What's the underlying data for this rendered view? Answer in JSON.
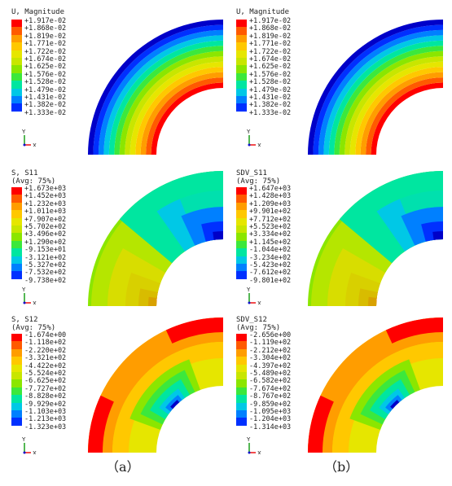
{
  "panels": [
    {
      "id": "u_a",
      "title": [
        "U, Magnitude"
      ],
      "values": [
        "+1.917e-02",
        "+1.868e-02",
        "+1.819e-02",
        "+1.771e-02",
        "+1.722e-02",
        "+1.674e-02",
        "+1.625e-02",
        "+1.576e-02",
        "+1.528e-02",
        "+1.479e-02",
        "+1.431e-02",
        "+1.382e-02",
        "+1.333e-02"
      ]
    },
    {
      "id": "u_b",
      "title": [
        "U, Magnitude"
      ],
      "values": [
        "+1.917e-02",
        "+1.868e-02",
        "+1.819e-02",
        "+1.771e-02",
        "+1.722e-02",
        "+1.674e-02",
        "+1.625e-02",
        "+1.576e-02",
        "+1.528e-02",
        "+1.479e-02",
        "+1.431e-02",
        "+1.382e-02",
        "+1.333e-02"
      ]
    },
    {
      "id": "s11_a",
      "title": [
        "S, S11",
        "(Avg: 75%)"
      ],
      "values": [
        "+1.673e+03",
        "+1.452e+03",
        "+1.232e+03",
        "+1.011e+03",
        "+7.907e+02",
        "+5.702e+02",
        "+3.496e+02",
        "+1.290e+02",
        "-9.153e+01",
        "-3.121e+02",
        "-5.327e+02",
        "-7.532e+02",
        "-9.738e+02"
      ]
    },
    {
      "id": "s11_b",
      "title": [
        "SDV_S11",
        "(Avg: 75%)"
      ],
      "values": [
        "+1.647e+03",
        "+1.428e+03",
        "+1.209e+03",
        "+9.901e+02",
        "+7.712e+02",
        "+5.523e+02",
        "+3.334e+02",
        "+1.145e+02",
        "-1.044e+02",
        "-3.234e+02",
        "-5.423e+02",
        "-7.612e+02",
        "-9.801e+02"
      ]
    },
    {
      "id": "s12_a",
      "title": [
        "S, S12",
        "(Avg: 75%)"
      ],
      "values": [
        "-1.674e+00",
        "-1.118e+02",
        "-2.220e+02",
        "-3.321e+02",
        "-4.422e+02",
        "-5.524e+02",
        "-6.625e+02",
        "-7.727e+02",
        "-8.828e+02",
        "-9.929e+02",
        "-1.103e+03",
        "-1.213e+03",
        "-1.323e+03"
      ]
    },
    {
      "id": "s12_b",
      "title": [
        "SDV_S12",
        "(Avg: 75%)"
      ],
      "values": [
        "-2.656e+00",
        "-1.119e+02",
        "-2.212e+02",
        "-3.304e+02",
        "-4.397e+02",
        "-5.489e+02",
        "-6.582e+02",
        "-7.674e+02",
        "-8.767e+02",
        "-9.859e+02",
        "-1.095e+03",
        "-1.204e+03",
        "-1.314e+03"
      ]
    }
  ],
  "axis_labels": {
    "y": "Y",
    "x": "X",
    "z": "Z"
  },
  "captions": [
    "（a）",
    "（b）"
  ],
  "colors": {
    "scale": [
      "#ff0000",
      "#ff5a00",
      "#ff9d00",
      "#ffc800",
      "#e6e600",
      "#c8e600",
      "#8be600",
      "#3ce83c",
      "#00e6a0",
      "#00c8e6",
      "#0080ff",
      "#0030ff",
      "#0000c8"
    ]
  }
}
